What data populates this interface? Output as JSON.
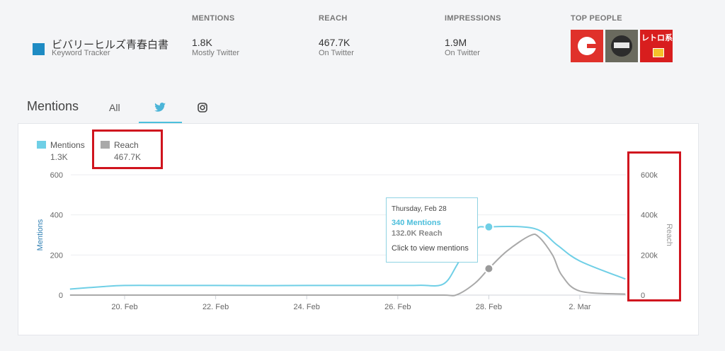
{
  "tracker": {
    "name": "ビバリーヒルズ青春白書",
    "sub": "Keyword Tracker",
    "color": "#1e8bc3"
  },
  "stats": [
    {
      "label": "MENTIONS",
      "value": "1.8K",
      "sub": "Mostly Twitter"
    },
    {
      "label": "REACH",
      "value": "467.7K",
      "sub": "On Twitter"
    },
    {
      "label": "IMPRESSIONS",
      "value": "1.9M",
      "sub": "On Twitter"
    }
  ],
  "people": {
    "label": "TOP PEOPLE",
    "avatars": [
      "avatar-1",
      "avatar-2",
      "avatar-3"
    ],
    "avatar3_text": "レトロ系"
  },
  "tabs": {
    "title": "Mentions",
    "all": "All",
    "twitter_icon": "twitter-icon",
    "instagram_icon": "instagram-icon",
    "active": "twitter"
  },
  "legend": {
    "mentions": {
      "label": "Mentions",
      "value": "1.3K",
      "color": "#6fcfe6"
    },
    "reach": {
      "label": "Reach",
      "value": "467.7K",
      "color": "#a9a9a9"
    }
  },
  "tooltip": {
    "date": "Thursday, Feb 28",
    "mentions": "340 Mentions",
    "reach": "132.0K Reach",
    "action": "Click to view mentions"
  },
  "chart_data": {
    "type": "line",
    "xlabel": "",
    "x_ticks": [
      "20. Feb",
      "22. Feb",
      "24. Feb",
      "26. Feb",
      "28. Feb",
      "2. Mar"
    ],
    "y_left": {
      "label": "Mentions",
      "ticks": [
        "0",
        "200",
        "400",
        "600"
      ],
      "range": [
        0,
        600
      ]
    },
    "y_right": {
      "label": "Reach",
      "ticks": [
        "0",
        "200k",
        "400k",
        "600k"
      ],
      "range": [
        0,
        600000
      ]
    },
    "grid": true,
    "series": [
      {
        "name": "Mentions",
        "axis": "left",
        "color": "#6fcfe6",
        "x": [
          18.8,
          19.5,
          20.0,
          21.0,
          22.0,
          23.0,
          24.0,
          25.0,
          26.0,
          26.5,
          27.0,
          27.3,
          27.7,
          28.0,
          29.0,
          29.5,
          30.0,
          31.0
        ],
        "y": [
          30,
          42,
          48,
          48,
          48,
          47,
          48,
          48,
          48,
          49,
          55,
          150,
          320,
          340,
          332,
          250,
          170,
          80
        ]
      },
      {
        "name": "Reach",
        "axis": "right",
        "color": "#a9a9a9",
        "x": [
          18.8,
          20.0,
          22.0,
          24.0,
          26.0,
          27.0,
          27.3,
          27.7,
          28.0,
          28.4,
          28.9,
          29.1,
          29.4,
          29.6,
          30.0,
          31.0
        ],
        "y": [
          0,
          0,
          0,
          0,
          0,
          0,
          2000,
          60000,
          132000,
          220000,
          296000,
          290000,
          200000,
          100000,
          20000,
          5000
        ]
      }
    ],
    "highlight": {
      "x": 28.0,
      "mentions": 340,
      "reach": 132000
    }
  }
}
